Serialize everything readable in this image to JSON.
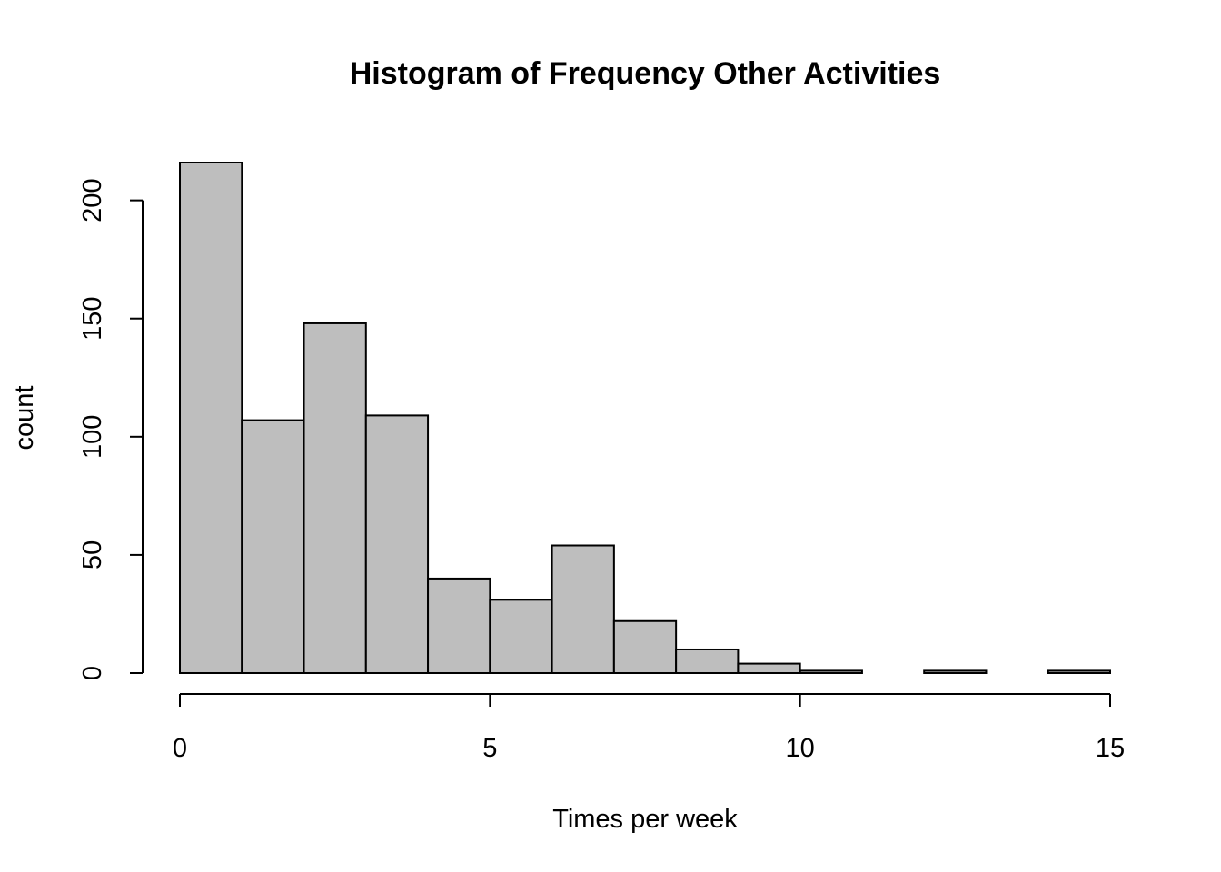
{
  "chart_data": {
    "type": "bar",
    "title": "Histogram of Frequency Other Activities",
    "xlabel": "Times per week",
    "ylabel": "count",
    "bin_edges": [
      0,
      1,
      2,
      3,
      4,
      5,
      6,
      7,
      8,
      9,
      10,
      11,
      12,
      13,
      14,
      15
    ],
    "values": [
      216,
      107,
      148,
      109,
      40,
      31,
      54,
      22,
      10,
      4,
      1,
      0,
      1,
      0,
      1
    ],
    "xlim": [
      0,
      15
    ],
    "ylim": [
      0,
      216
    ],
    "x_ticks": [
      0,
      5,
      10,
      15
    ],
    "y_ticks": [
      0,
      50,
      100,
      150,
      200
    ],
    "bar_color": "#bebebe",
    "grid": false
  }
}
